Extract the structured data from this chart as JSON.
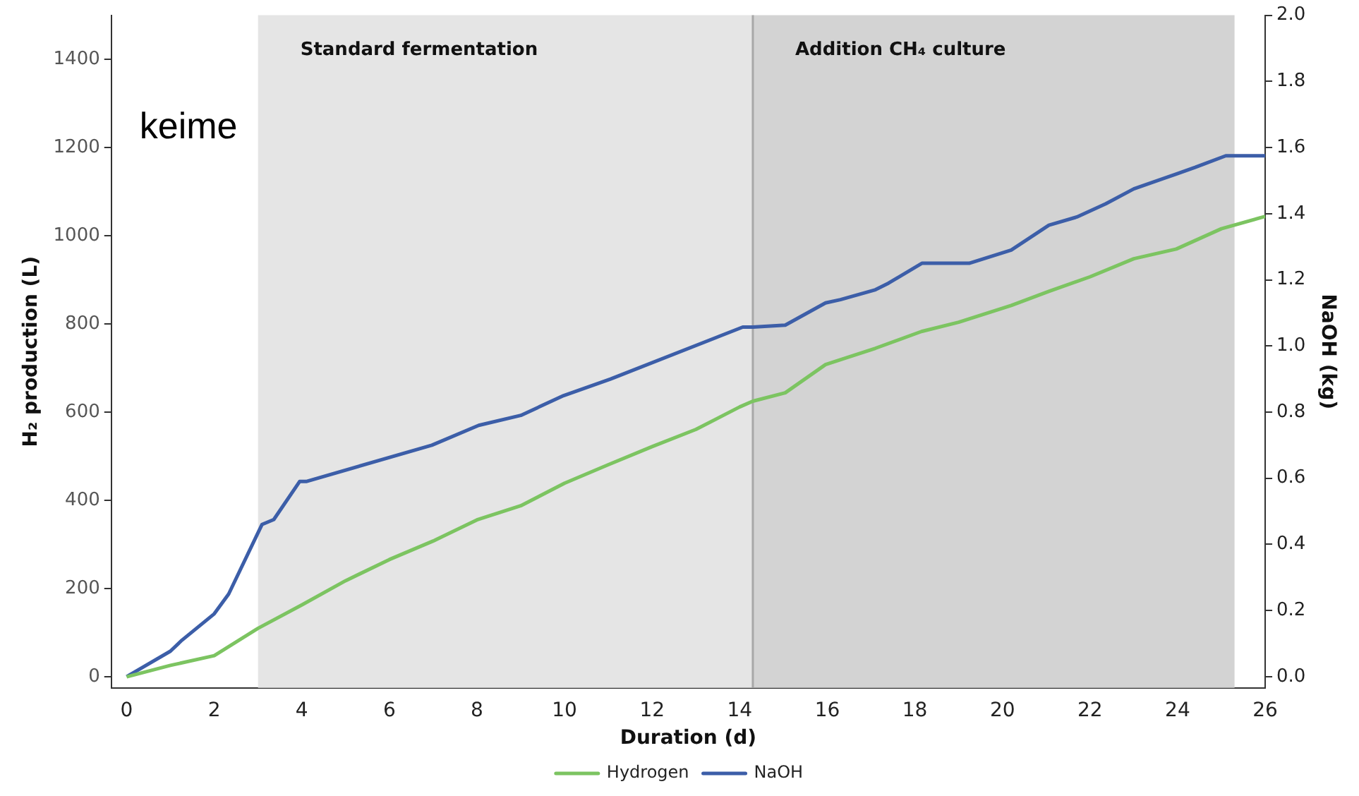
{
  "chart_data": {
    "type": "line",
    "xlabel": "Duration (d)",
    "ylabel": "H₂ production (L)",
    "y2label": "NaOH (kg)",
    "annotations": [
      "keime"
    ],
    "xlim": [
      -0.35,
      26
    ],
    "xticks": [
      0,
      2,
      4,
      6,
      8,
      10,
      12,
      14,
      16,
      18,
      20,
      22,
      24,
      26
    ],
    "ylim": [
      -25,
      1500
    ],
    "yticks": [
      0,
      200,
      400,
      600,
      800,
      1000,
      1200,
      1400
    ],
    "y2lim": [
      -0.034,
      2.0
    ],
    "y2ticks": [
      {
        "value": 0,
        "label": "0.0"
      },
      0.2,
      0.4,
      0.6,
      0.8,
      {
        "value": 1,
        "label": "1.0"
      },
      1.2,
      1.4,
      1.6,
      1.8,
      {
        "value": 2,
        "label": "2.0"
      }
    ],
    "bands": [
      {
        "axis": "x",
        "from": 3.0,
        "to": 14.3,
        "label": "Standard fermentation",
        "color": "#e5e5e5"
      },
      {
        "axis": "x",
        "from": 14.3,
        "to": 25.3,
        "label": "Addition CH₄ culture",
        "color": "#d3d3d3"
      }
    ],
    "ref_lines": [
      {
        "axis": "x",
        "value": 14.3,
        "color": "#a8a8a8"
      }
    ],
    "legend": "bottom",
    "grid": false,
    "marker": "none",
    "line_style": "solid",
    "series": [
      {
        "name": "Hydrogen",
        "color": "#7cc461",
        "x": [
          0,
          1,
          2,
          3,
          4,
          5,
          6,
          7,
          8,
          9,
          10,
          11,
          12,
          13,
          14,
          14.3,
          15.04,
          15.96,
          17.1,
          18.15,
          19,
          20.2,
          21.06,
          22,
          23,
          23.97,
          25,
          26
        ],
        "values": [
          0,
          26,
          48,
          110,
          163,
          218,
          266,
          308,
          356,
          388,
          439,
          481,
          522,
          561,
          612,
          625,
          644,
          708,
          745,
          783,
          804,
          842,
          874,
          907,
          948,
          970,
          1016,
          1044
        ]
      },
      {
        "name": "NaOH",
        "color": "#3c5ea8",
        "axis": "y2",
        "x": [
          0,
          1,
          1.26,
          2,
          2.33,
          3.09,
          3.36,
          3.95,
          4.1,
          6.97,
          8.04,
          9,
          9.98,
          11.05,
          14.07,
          14.3,
          15.04,
          15.96,
          16.3,
          17.1,
          17.4,
          18.16,
          19.24,
          20.2,
          21.06,
          21.7,
          22.36,
          23,
          23.97,
          24.4,
          25.1,
          26
        ],
        "values": [
          0,
          0.077,
          0.11,
          0.19,
          0.25,
          0.46,
          0.475,
          0.59,
          0.59,
          0.7,
          0.76,
          0.79,
          0.85,
          0.9,
          1.057,
          1.057,
          1.063,
          1.13,
          1.14,
          1.17,
          1.19,
          1.25,
          1.25,
          1.29,
          1.365,
          1.39,
          1.43,
          1.475,
          1.52,
          1.54,
          1.575,
          1.575
        ]
      }
    ]
  }
}
